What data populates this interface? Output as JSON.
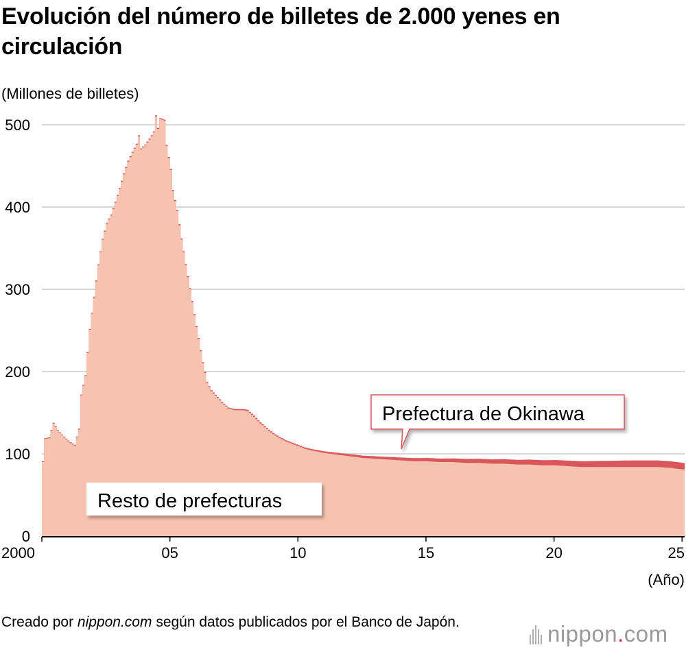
{
  "header": {
    "title": "Evolución del número de billetes de 2.000 yenes en circulación",
    "unit": "(Millones de billetes)"
  },
  "footer": {
    "source_prefix": "Creado por ",
    "source_site": "nippon.com",
    "source_suffix": " según datos publicados por el Banco de Japón.",
    "logo_name": "nippon",
    "logo_dot": ".",
    "logo_tld": "com"
  },
  "colors": {
    "rest": "#f6c3b0",
    "okinawa": "#d9575a",
    "grid": "#c8c8c8",
    "axis": "#000000"
  },
  "chart_data": {
    "type": "area",
    "x_unit": "(Año)",
    "y_label": "(Millones de billetes)",
    "ylim": [
      0,
      520
    ],
    "y_ticks": [
      0,
      100,
      200,
      300,
      400,
      500
    ],
    "xlim": [
      2000.0,
      2025.1
    ],
    "x_ticks": [
      {
        "value": 2000,
        "label": "2000"
      },
      {
        "value": 2005,
        "label": "05"
      },
      {
        "value": 2010,
        "label": "10"
      },
      {
        "value": 2015,
        "label": "15"
      },
      {
        "value": 2020,
        "label": "20"
      },
      {
        "value": 2025,
        "label": "25"
      }
    ],
    "grid": true,
    "stacked": true,
    "series": [
      {
        "name": "Resto de prefecturas",
        "points": [
          [
            2000.0,
            90
          ],
          [
            2000.08,
            118
          ],
          [
            2000.25,
            119
          ],
          [
            2000.42,
            137
          ],
          [
            2000.58,
            128
          ],
          [
            2000.83,
            120
          ],
          [
            2001.08,
            113
          ],
          [
            2001.25,
            110
          ],
          [
            2001.42,
            130
          ],
          [
            2001.5,
            171
          ],
          [
            2001.67,
            195
          ],
          [
            2001.83,
            250
          ],
          [
            2002.0,
            290
          ],
          [
            2002.17,
            330
          ],
          [
            2002.33,
            360
          ],
          [
            2002.5,
            380
          ],
          [
            2002.67,
            390
          ],
          [
            2002.83,
            405
          ],
          [
            2003.0,
            422
          ],
          [
            2003.17,
            440
          ],
          [
            2003.33,
            455
          ],
          [
            2003.5,
            466
          ],
          [
            2003.67,
            476
          ],
          [
            2003.75,
            486
          ],
          [
            2003.83,
            470
          ],
          [
            2004.0,
            475
          ],
          [
            2004.17,
            482
          ],
          [
            2004.33,
            490
          ],
          [
            2004.42,
            511
          ],
          [
            2004.5,
            495
          ],
          [
            2004.58,
            507
          ],
          [
            2004.75,
            505
          ],
          [
            2004.83,
            475
          ],
          [
            2005.0,
            445
          ],
          [
            2005.08,
            420
          ],
          [
            2005.25,
            395
          ],
          [
            2005.42,
            360
          ],
          [
            2005.58,
            330
          ],
          [
            2005.75,
            300
          ],
          [
            2005.92,
            268
          ],
          [
            2006.08,
            240
          ],
          [
            2006.25,
            210
          ],
          [
            2006.42,
            186
          ],
          [
            2006.58,
            176
          ],
          [
            2006.83,
            168
          ],
          [
            2007.0,
            162
          ],
          [
            2007.25,
            155
          ],
          [
            2007.5,
            153
          ],
          [
            2007.83,
            153
          ],
          [
            2008.0,
            152
          ],
          [
            2008.25,
            145
          ],
          [
            2008.5,
            137
          ],
          [
            2008.75,
            130
          ],
          [
            2009.0,
            124
          ],
          [
            2009.25,
            119
          ],
          [
            2009.5,
            115
          ],
          [
            2009.75,
            112
          ],
          [
            2010.0,
            109
          ],
          [
            2010.25,
            106
          ],
          [
            2010.5,
            104
          ],
          [
            2011.0,
            101
          ],
          [
            2011.5,
            99
          ],
          [
            2012.0,
            97
          ],
          [
            2012.5,
            95
          ],
          [
            2013.0,
            94
          ],
          [
            2013.5,
            93
          ],
          [
            2014.0,
            92
          ],
          [
            2014.5,
            91
          ],
          [
            2015.0,
            91
          ],
          [
            2015.5,
            90
          ],
          [
            2016.0,
            90
          ],
          [
            2016.5,
            89
          ],
          [
            2017.0,
            89
          ],
          [
            2017.5,
            88
          ],
          [
            2018.0,
            88
          ],
          [
            2018.5,
            87
          ],
          [
            2019.0,
            87
          ],
          [
            2019.5,
            86
          ],
          [
            2020.0,
            86
          ],
          [
            2020.5,
            85
          ],
          [
            2021.0,
            84
          ],
          [
            2021.5,
            84
          ],
          [
            2022.0,
            84
          ],
          [
            2022.5,
            84
          ],
          [
            2023.0,
            84
          ],
          [
            2023.5,
            84
          ],
          [
            2024.0,
            84
          ],
          [
            2024.5,
            83
          ],
          [
            2025.0,
            81
          ],
          [
            2025.1,
            81
          ]
        ]
      },
      {
        "name": "Prefectura de Okinawa",
        "points": [
          [
            2000.0,
            1
          ],
          [
            2010.0,
            1.5
          ],
          [
            2011.0,
            2
          ],
          [
            2012.0,
            2.5
          ],
          [
            2013.0,
            3
          ],
          [
            2014.0,
            3.5
          ],
          [
            2015.0,
            4
          ],
          [
            2016.0,
            4.5
          ],
          [
            2017.0,
            5
          ],
          [
            2018.0,
            5.5
          ],
          [
            2019.0,
            6
          ],
          [
            2020.0,
            6.5
          ],
          [
            2021.0,
            7
          ],
          [
            2022.0,
            7.5
          ],
          [
            2023.0,
            8
          ],
          [
            2024.0,
            8
          ],
          [
            2025.1,
            8
          ]
        ]
      }
    ],
    "annotations": [
      {
        "text": "Prefectura de Okinawa",
        "series": "Prefectura de Okinawa"
      },
      {
        "text": "Resto de prefecturas",
        "series": "Resto de prefecturas"
      }
    ]
  }
}
